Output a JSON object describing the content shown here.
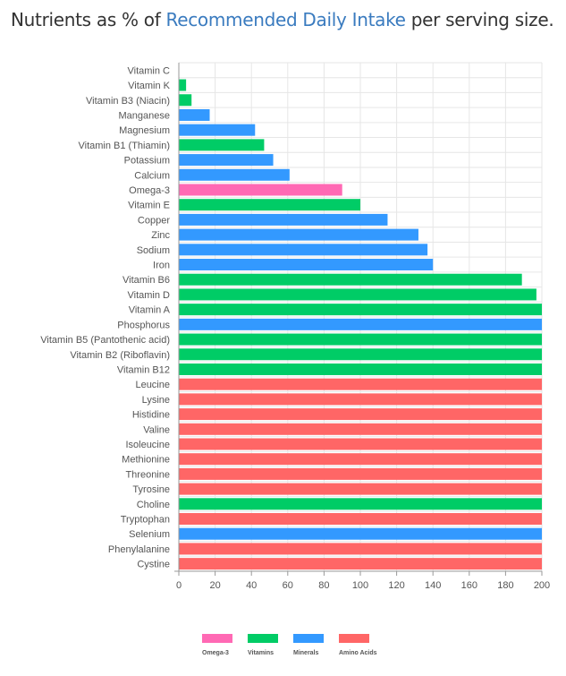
{
  "heading": {
    "prefix": "Nutrients as % of ",
    "link_text": "Recommended Daily Intake",
    "suffix": " per serving size."
  },
  "colors": {
    "Omega-3": "#ff69b4",
    "Vitamins": "#00cc66",
    "Minerals": "#3399ff",
    "Amino Acids": "#ff6666",
    "grid": "#e6e6e6",
    "axis": "#999999"
  },
  "chart_data": {
    "type": "bar",
    "orientation": "horizontal",
    "title": "Nutrients as % of Recommended Daily Intake per serving size.",
    "xlabel": "",
    "ylabel": "",
    "xlim": [
      0,
      200
    ],
    "x_ticks": [
      0,
      20,
      40,
      60,
      80,
      100,
      120,
      140,
      160,
      180,
      200
    ],
    "grid": true,
    "legend_position": "bottom",
    "legend": [
      "Omega-3",
      "Vitamins",
      "Minerals",
      "Amino Acids"
    ],
    "categories": [
      "Vitamin C",
      "Vitamin K",
      "Vitamin B3 (Niacin)",
      "Manganese",
      "Magnesium",
      "Vitamin B1 (Thiamin)",
      "Potassium",
      "Calcium",
      "Omega-3",
      "Vitamin E",
      "Copper",
      "Zinc",
      "Sodium",
      "Iron",
      "Vitamin B6",
      "Vitamin D",
      "Vitamin A",
      "Phosphorus",
      "Vitamin B5 (Pantothenic acid)",
      "Vitamin B2 (Riboflavin)",
      "Vitamin B12",
      "Leucine",
      "Lysine",
      "Histidine",
      "Valine",
      "Isoleucine",
      "Methionine",
      "Threonine",
      "Tyrosine",
      "Choline",
      "Tryptophan",
      "Selenium",
      "Phenylalanine",
      "Cystine"
    ],
    "values": [
      0,
      4,
      7,
      17,
      42,
      47,
      52,
      61,
      90,
      100,
      115,
      132,
      137,
      140,
      189,
      197,
      200,
      200,
      200,
      200,
      200,
      200,
      200,
      200,
      200,
      200,
      200,
      200,
      200,
      200,
      200,
      200,
      200,
      200
    ],
    "groups": [
      "Vitamins",
      "Vitamins",
      "Vitamins",
      "Minerals",
      "Minerals",
      "Vitamins",
      "Minerals",
      "Minerals",
      "Omega-3",
      "Vitamins",
      "Minerals",
      "Minerals",
      "Minerals",
      "Minerals",
      "Vitamins",
      "Vitamins",
      "Vitamins",
      "Minerals",
      "Vitamins",
      "Vitamins",
      "Vitamins",
      "Amino Acids",
      "Amino Acids",
      "Amino Acids",
      "Amino Acids",
      "Amino Acids",
      "Amino Acids",
      "Amino Acids",
      "Amino Acids",
      "Vitamins",
      "Amino Acids",
      "Minerals",
      "Amino Acids",
      "Amino Acids"
    ]
  }
}
